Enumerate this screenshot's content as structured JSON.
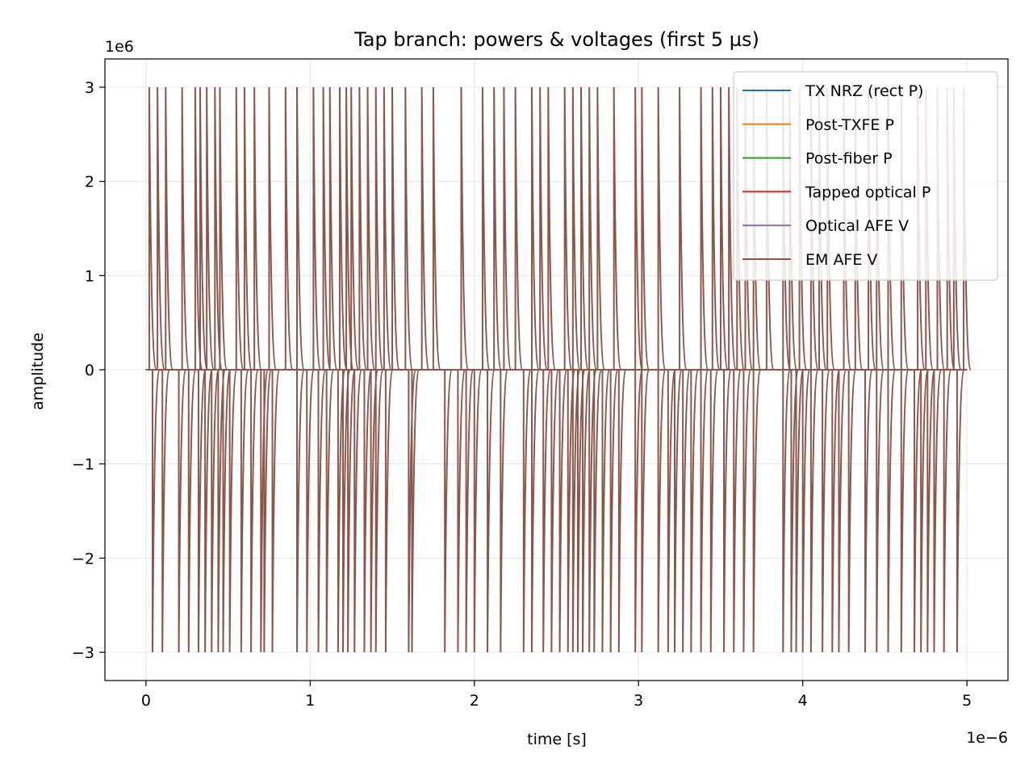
{
  "chart_data": {
    "type": "line",
    "title": "Tap branch: powers & voltages (first 5 µs)",
    "xlabel": "time [s]",
    "ylabel": "amplitude",
    "x_offset_text": "1e−6",
    "y_offset_text": "1e6",
    "xlim": [
      -0.25,
      5.25
    ],
    "ylim": [
      -3.3,
      3.3
    ],
    "x_ticks": [
      {
        "v": 0,
        "label": "0"
      },
      {
        "v": 1,
        "label": "1"
      },
      {
        "v": 2,
        "label": "2"
      },
      {
        "v": 3,
        "label": "3"
      },
      {
        "v": 4,
        "label": "4"
      },
      {
        "v": 5,
        "label": "5"
      }
    ],
    "y_ticks": [
      {
        "v": -3,
        "label": "−3"
      },
      {
        "v": -2,
        "label": "−2"
      },
      {
        "v": -1,
        "label": "−1"
      },
      {
        "v": 0,
        "label": "0"
      },
      {
        "v": 1,
        "label": "1"
      },
      {
        "v": 2,
        "label": "2"
      },
      {
        "v": 3,
        "label": "3"
      }
    ],
    "grid": true,
    "legend_position": "upper right",
    "series": [
      {
        "name": "TX NRZ (rect P)",
        "color": "#1f77b4",
        "value": 0
      },
      {
        "name": "Post-TXFE P",
        "color": "#ff7f0e",
        "value": 0
      },
      {
        "name": "Post-fiber P",
        "color": "#2ca02c",
        "value": 0
      },
      {
        "name": "Tapped optical P",
        "color": "#d62728",
        "value": 0
      },
      {
        "name": "Optical AFE V",
        "color": "#9467bd",
        "value": 0
      },
      {
        "name": "EM AFE V",
        "color": "#8c564b",
        "value": 0,
        "spike_amplitude": 3,
        "positive_spikes_t": [
          0.02,
          0.07,
          0.12,
          0.22,
          0.3,
          0.33,
          0.37,
          0.42,
          0.45,
          0.55,
          0.6,
          0.66,
          0.75,
          0.85,
          0.92,
          1.02,
          1.08,
          1.12,
          1.18,
          1.22,
          1.25,
          1.3,
          1.35,
          1.4,
          1.45,
          1.5,
          1.58,
          1.68,
          1.75,
          1.92,
          2.05,
          2.12,
          2.18,
          2.25,
          2.35,
          2.4,
          2.45,
          2.55,
          2.6,
          2.65,
          2.7,
          2.75,
          2.85,
          2.98,
          3.02,
          3.12,
          3.25,
          3.38,
          3.45,
          3.5,
          3.55,
          3.6,
          3.65,
          3.7,
          3.78,
          3.88,
          3.92,
          3.98,
          4.05,
          4.1,
          4.15,
          4.25,
          4.32,
          4.4,
          4.45,
          4.52,
          4.6,
          4.7,
          4.75,
          4.82,
          4.88,
          4.92,
          4.98
        ],
        "negative_spikes_t": [
          0.04,
          0.1,
          0.2,
          0.26,
          0.32,
          0.36,
          0.4,
          0.44,
          0.47,
          0.51,
          0.58,
          0.64,
          0.7,
          0.72,
          0.77,
          0.92,
          0.98,
          1.05,
          1.1,
          1.17,
          1.2,
          1.23,
          1.27,
          1.33,
          1.37,
          1.4,
          1.46,
          1.6,
          1.62,
          1.82,
          1.9,
          1.95,
          2.0,
          2.08,
          2.16,
          2.3,
          2.35,
          2.42,
          2.47,
          2.52,
          2.57,
          2.6,
          2.63,
          2.66,
          2.7,
          2.73,
          2.78,
          2.83,
          2.88,
          2.98,
          3.02,
          3.12,
          3.18,
          3.22,
          3.27,
          3.32,
          3.38,
          3.44,
          3.52,
          3.58,
          3.64,
          3.7,
          3.88,
          3.93,
          3.96,
          4.0,
          4.05,
          4.12,
          4.18,
          4.22,
          4.28,
          4.38,
          4.45,
          4.52,
          4.6,
          4.68,
          4.72,
          4.76,
          4.8,
          4.86,
          4.94
        ]
      }
    ]
  }
}
